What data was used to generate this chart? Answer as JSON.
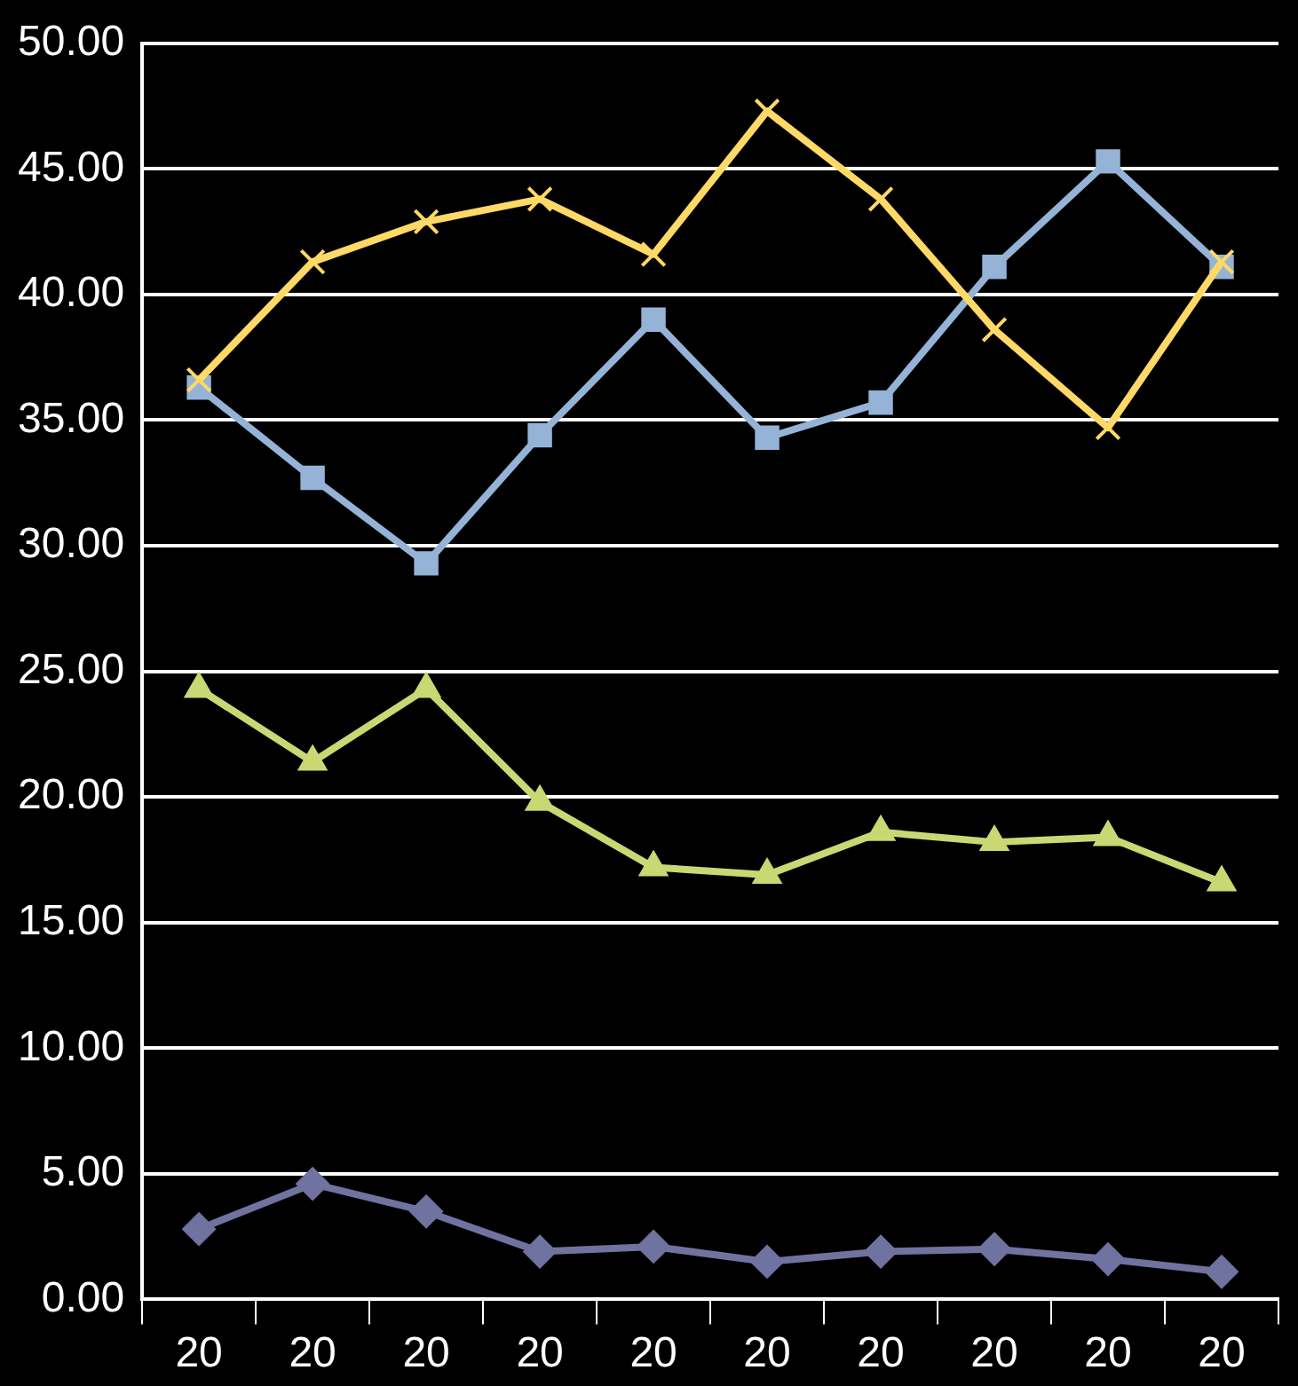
{
  "chart_data": {
    "type": "line",
    "categories": [
      "20",
      "20",
      "20",
      "20",
      "20",
      "20",
      "20",
      "20",
      "20",
      "20"
    ],
    "series": [
      {
        "color": "#ffd966",
        "marker": "cross",
        "values": [
          36.6,
          41.3,
          42.9,
          43.8,
          41.6,
          47.3,
          43.8,
          38.6,
          34.7,
          41.3
        ]
      },
      {
        "color": "#95b3d7",
        "marker": "square",
        "values": [
          36.3,
          32.7,
          29.3,
          34.4,
          39.0,
          34.3,
          35.7,
          41.1,
          45.3,
          41.1
        ]
      },
      {
        "color": "#c9d873",
        "marker": "triangle",
        "values": [
          24.3,
          21.4,
          24.3,
          19.8,
          17.2,
          16.9,
          18.6,
          18.2,
          18.4,
          16.6
        ]
      },
      {
        "color": "#7072a0",
        "marker": "diamond",
        "values": [
          2.8,
          4.6,
          3.5,
          1.9,
          2.1,
          1.5,
          1.9,
          2.0,
          1.6,
          1.1
        ]
      }
    ],
    "ylim": [
      0,
      50
    ],
    "yticks": [
      {
        "value": 0,
        "label": "0.00"
      },
      {
        "value": 5,
        "label": "5.00"
      },
      {
        "value": 10,
        "label": "10.00"
      },
      {
        "value": 15,
        "label": "15.00"
      },
      {
        "value": 20,
        "label": "20.00"
      },
      {
        "value": 25,
        "label": "25.00"
      },
      {
        "value": 30,
        "label": "30.00"
      },
      {
        "value": 35,
        "label": "35.00"
      },
      {
        "value": 40,
        "label": "40.00"
      },
      {
        "value": 45,
        "label": "45.00"
      },
      {
        "value": 50,
        "label": "50.00"
      }
    ],
    "grid": "y",
    "legend": false
  }
}
